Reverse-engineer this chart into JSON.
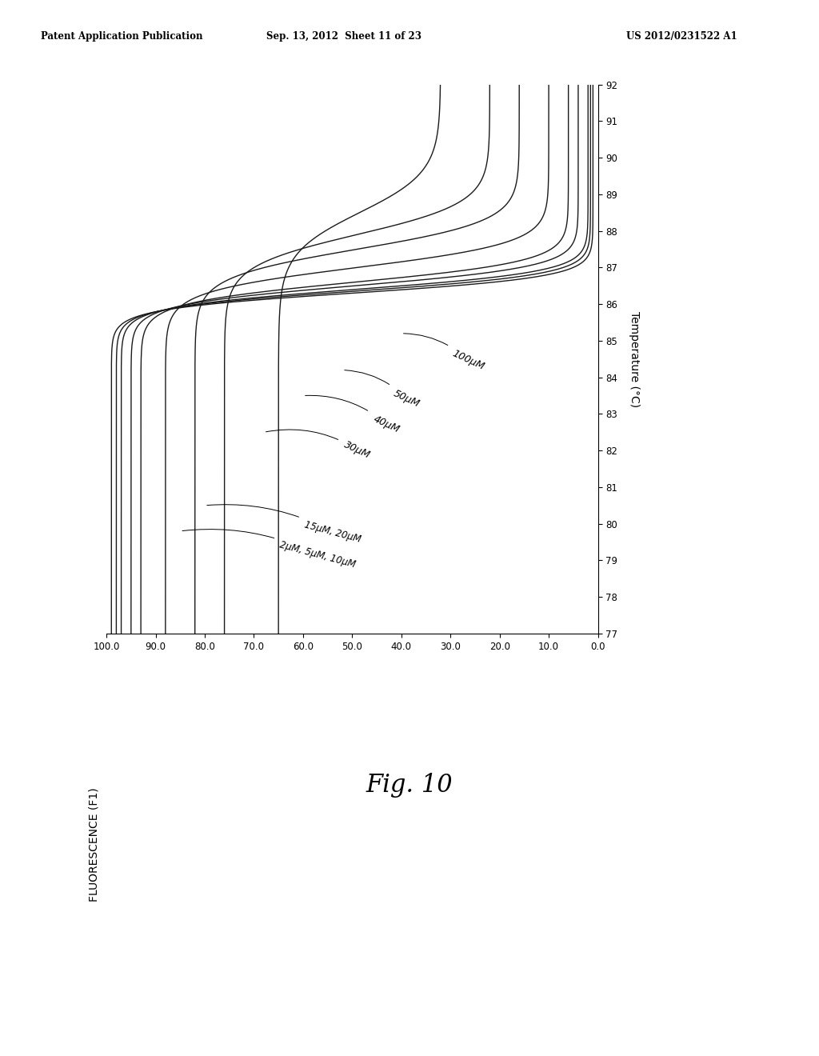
{
  "header_left": "Patent Application Publication",
  "header_center": "Sep. 13, 2012  Sheet 11 of 23",
  "header_right": "US 2012/0231522 A1",
  "fig_label": "Fig. 10",
  "ylabel_text": "FLUORESCENCE (F1)",
  "xlabel_text": "Temperature (°C)",
  "fluor_ticks": [
    0.0,
    10.0,
    20.0,
    30.0,
    40.0,
    50.0,
    60.0,
    70.0,
    80.0,
    90.0,
    100.0
  ],
  "temp_ticks": [
    77,
    78,
    79,
    80,
    81,
    82,
    83,
    84,
    85,
    86,
    87,
    88,
    89,
    90,
    91,
    92
  ],
  "fluor_lim": [
    0,
    100
  ],
  "temp_lim": [
    77,
    92
  ],
  "background_color": "#ffffff",
  "line_color": "#1a1a1a",
  "line_width": 1.0
}
